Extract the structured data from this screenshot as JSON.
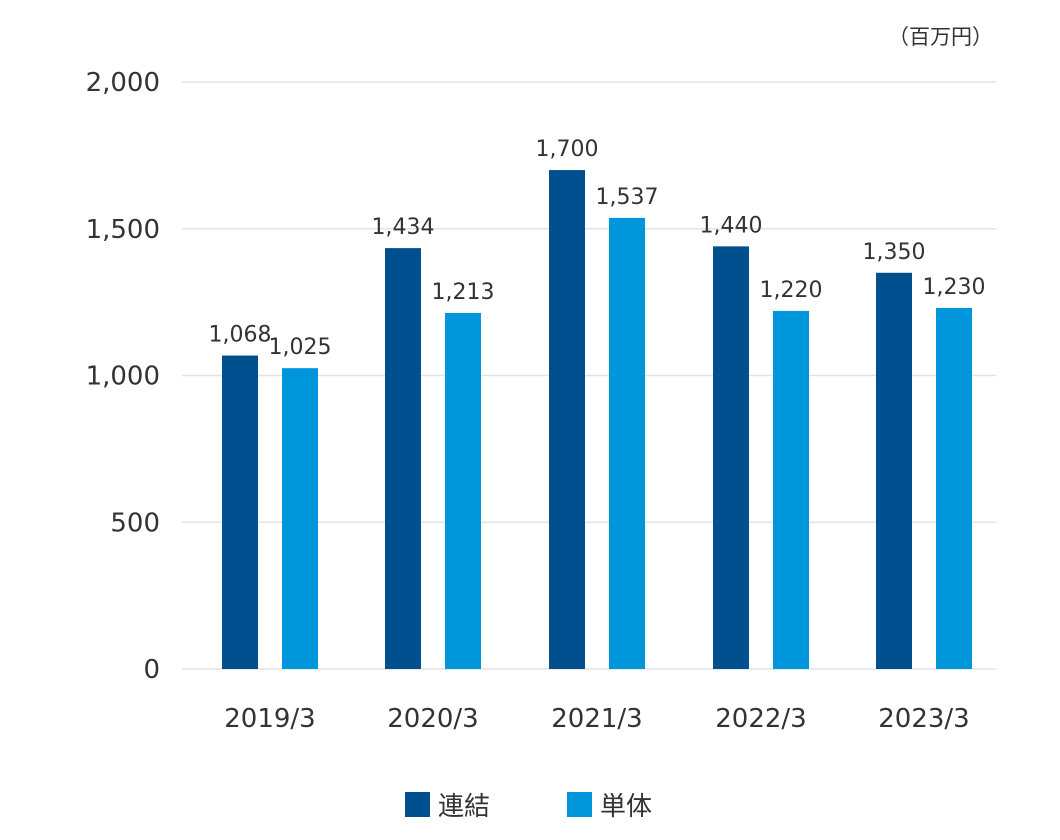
{
  "chart_data": {
    "type": "bar",
    "unit": "（百万円）",
    "categories": [
      "2019/3",
      "2020/3",
      "2021/3",
      "2022/3",
      "2023/3"
    ],
    "series": [
      {
        "name": "連結",
        "color": "#004f8f",
        "values": [
          1068,
          1434,
          1700,
          1440,
          1350
        ],
        "labels": [
          "1,068",
          "1,434",
          "1,700",
          "1,440",
          "1,350"
        ]
      },
      {
        "name": "単体",
        "color": "#0096dc",
        "values": [
          1025,
          1213,
          1537,
          1220,
          1230
        ],
        "labels": [
          "1,025",
          "1,213",
          "1,537",
          "1,220",
          "1,230"
        ]
      }
    ],
    "ylim": [
      0,
      2000
    ],
    "yticks": [
      0,
      500,
      1000,
      1500,
      2000
    ],
    "ytick_labels": [
      "0",
      "500",
      "1,000",
      "1,500",
      "2,000"
    ],
    "grid": true,
    "legend_position": "bottom-center"
  }
}
